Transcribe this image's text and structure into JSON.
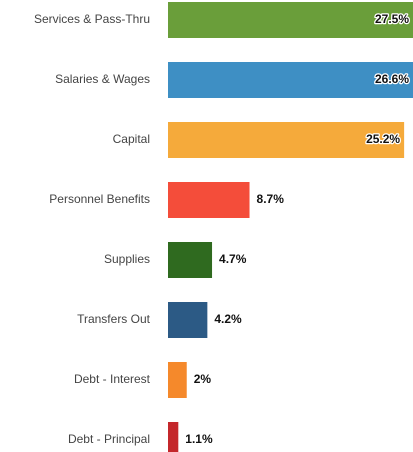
{
  "chart_data": {
    "type": "bar",
    "orientation": "horizontal",
    "categories": [
      "Services & Pass-Thru",
      "Salaries & Wages",
      "Capital",
      "Personnel Benefits",
      "Supplies",
      "Transfers Out",
      "Debt - Interest",
      "Debt - Principal"
    ],
    "values": [
      27.5,
      26.6,
      25.2,
      8.7,
      4.7,
      4.2,
      2,
      1.1
    ],
    "value_labels": [
      "27.5%",
      "26.6%",
      "25.2%",
      "8.7%",
      "4.7%",
      "4.2%",
      "2%",
      "1.1%"
    ],
    "colors": [
      "#6a9e3a",
      "#3e8fc4",
      "#f5aa3b",
      "#f44d3a",
      "#2f6a1f",
      "#2c5a85",
      "#f5892b",
      "#c4272b"
    ]
  }
}
